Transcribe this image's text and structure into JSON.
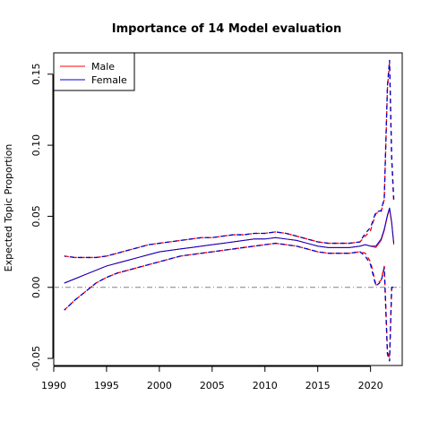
{
  "chart_data": {
    "type": "line",
    "title": "Importance of 14 Model evaluation",
    "xlabel": "",
    "ylabel": "Expected Topic Proportion",
    "xlim": [
      1990,
      2023
    ],
    "ylim": [
      -0.055,
      0.165
    ],
    "xticks": [
      1990,
      1995,
      2000,
      2005,
      2010,
      2015,
      2020
    ],
    "yticks": [
      -0.05,
      0.0,
      0.05,
      0.1,
      0.15
    ],
    "ytick_labels": [
      "-0.05",
      "0.00",
      "0.05",
      "0.10",
      "0.15"
    ],
    "reference_line": {
      "y": 0.0,
      "style": "dash-dot",
      "color": "#808080"
    },
    "legend": {
      "position": "top-left",
      "entries": [
        "Male",
        "Female"
      ]
    },
    "grid": false,
    "series": [
      {
        "name": "Male",
        "color": "#ff0000",
        "x": [
          1991,
          1992,
          1993,
          1994,
          1995,
          1996,
          1997,
          1998,
          1999,
          2000,
          2001,
          2002,
          2003,
          2004,
          2005,
          2006,
          2007,
          2008,
          2009,
          2010,
          2011,
          2012,
          2013,
          2014,
          2015,
          2016,
          2017,
          2018,
          2019,
          2019.5,
          2020,
          2020.5,
          2021,
          2021.3,
          2021.6,
          2021.8,
          2022,
          2022.2
        ],
        "estimate": [
          0.003,
          0.006,
          0.009,
          0.012,
          0.015,
          0.017,
          0.019,
          0.021,
          0.023,
          0.025,
          0.026,
          0.027,
          0.028,
          0.029,
          0.03,
          0.031,
          0.032,
          0.033,
          0.034,
          0.034,
          0.035,
          0.034,
          0.033,
          0.031,
          0.029,
          0.028,
          0.028,
          0.028,
          0.029,
          0.03,
          0.029,
          0.028,
          0.033,
          0.04,
          0.05,
          0.055,
          0.045,
          0.03
        ],
        "upper": [
          0.022,
          0.021,
          0.021,
          0.021,
          0.022,
          0.024,
          0.026,
          0.028,
          0.03,
          0.031,
          0.032,
          0.033,
          0.034,
          0.035,
          0.035,
          0.036,
          0.037,
          0.037,
          0.038,
          0.038,
          0.039,
          0.038,
          0.036,
          0.034,
          0.032,
          0.031,
          0.031,
          0.031,
          0.032,
          0.036,
          0.04,
          0.052,
          0.053,
          0.062,
          0.14,
          0.158,
          0.09,
          0.06
        ],
        "lower": [
          -0.016,
          -0.009,
          -0.003,
          0.003,
          0.007,
          0.01,
          0.012,
          0.014,
          0.016,
          0.018,
          0.02,
          0.022,
          0.023,
          0.024,
          0.025,
          0.026,
          0.027,
          0.028,
          0.029,
          0.03,
          0.031,
          0.03,
          0.029,
          0.027,
          0.025,
          0.024,
          0.024,
          0.024,
          0.025,
          0.024,
          0.018,
          0.002,
          0.005,
          0.015,
          -0.045,
          -0.05,
          0.0,
          0.0
        ]
      },
      {
        "name": "Female",
        "color": "#0000cc",
        "x": [
          1991,
          1992,
          1993,
          1994,
          1995,
          1996,
          1997,
          1998,
          1999,
          2000,
          2001,
          2002,
          2003,
          2004,
          2005,
          2006,
          2007,
          2008,
          2009,
          2010,
          2011,
          2012,
          2013,
          2014,
          2015,
          2016,
          2017,
          2018,
          2019,
          2019.5,
          2020,
          2020.5,
          2021,
          2021.3,
          2021.6,
          2021.8,
          2022,
          2022.2
        ],
        "estimate": [
          0.003,
          0.006,
          0.009,
          0.012,
          0.015,
          0.017,
          0.019,
          0.021,
          0.023,
          0.025,
          0.026,
          0.027,
          0.028,
          0.029,
          0.03,
          0.031,
          0.032,
          0.033,
          0.034,
          0.034,
          0.035,
          0.034,
          0.033,
          0.031,
          0.029,
          0.028,
          0.028,
          0.028,
          0.029,
          0.03,
          0.029,
          0.029,
          0.034,
          0.041,
          0.051,
          0.056,
          0.046,
          0.031
        ],
        "upper": [
          0.022,
          0.021,
          0.021,
          0.021,
          0.022,
          0.024,
          0.026,
          0.028,
          0.03,
          0.031,
          0.032,
          0.033,
          0.034,
          0.035,
          0.035,
          0.036,
          0.037,
          0.037,
          0.038,
          0.038,
          0.039,
          0.038,
          0.036,
          0.034,
          0.032,
          0.031,
          0.031,
          0.031,
          0.032,
          0.038,
          0.042,
          0.053,
          0.054,
          0.063,
          0.142,
          0.16,
          0.092,
          0.062
        ],
        "lower": [
          -0.016,
          -0.009,
          -0.003,
          0.003,
          0.007,
          0.01,
          0.012,
          0.014,
          0.016,
          0.018,
          0.02,
          0.022,
          0.023,
          0.024,
          0.025,
          0.026,
          0.027,
          0.028,
          0.029,
          0.03,
          0.031,
          0.03,
          0.029,
          0.027,
          0.025,
          0.024,
          0.024,
          0.024,
          0.025,
          0.022,
          0.016,
          0.001,
          0.004,
          0.014,
          -0.047,
          -0.052,
          0.0,
          0.0
        ]
      }
    ]
  }
}
